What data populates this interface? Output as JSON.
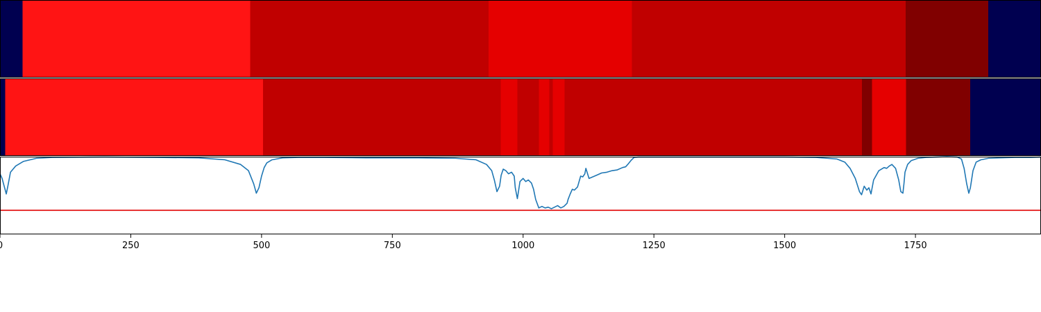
{
  "chart_data": [
    {
      "type": "heatmap",
      "xlim": [
        0,
        1990
      ],
      "segments": [
        {
          "x0": 0,
          "x1": 43,
          "color": "#000050"
        },
        {
          "x0": 43,
          "x1": 478,
          "color": "#ff1414"
        },
        {
          "x0": 478,
          "x1": 934,
          "color": "#c00000"
        },
        {
          "x0": 934,
          "x1": 1208,
          "color": "#e50000"
        },
        {
          "x0": 1208,
          "x1": 1731,
          "color": "#c00000"
        },
        {
          "x0": 1731,
          "x1": 1889,
          "color": "#800000"
        },
        {
          "x0": 1889,
          "x1": 1990,
          "color": "#000050"
        }
      ]
    },
    {
      "type": "heatmap",
      "xlim": [
        0,
        1990
      ],
      "segments": [
        {
          "x0": 0,
          "x1": 10,
          "color": "#000050"
        },
        {
          "x0": 10,
          "x1": 503,
          "color": "#ff1414"
        },
        {
          "x0": 503,
          "x1": 957,
          "color": "#c00000"
        },
        {
          "x0": 957,
          "x1": 989,
          "color": "#e50000"
        },
        {
          "x0": 989,
          "x1": 1030,
          "color": "#c00000"
        },
        {
          "x0": 1030,
          "x1": 1050,
          "color": "#e50000"
        },
        {
          "x0": 1050,
          "x1": 1057,
          "color": "#c00000"
        },
        {
          "x0": 1057,
          "x1": 1079,
          "color": "#e50000"
        },
        {
          "x0": 1079,
          "x1": 1648,
          "color": "#c00000"
        },
        {
          "x0": 1648,
          "x1": 1667,
          "color": "#800000"
        },
        {
          "x0": 1667,
          "x1": 1732,
          "color": "#e50000"
        },
        {
          "x0": 1732,
          "x1": 1855,
          "color": "#800000"
        },
        {
          "x0": 1855,
          "x1": 1990,
          "color": "#000050"
        }
      ]
    },
    {
      "type": "line",
      "xlim": [
        0,
        1990
      ],
      "ylim": [
        0,
        1
      ],
      "xticks": [
        0,
        250,
        500,
        750,
        1000,
        1250,
        1500,
        1750
      ],
      "xtick_labels": [
        "0",
        "250",
        "500",
        "750",
        "1000",
        "1250",
        "1500",
        "1750"
      ],
      "hline": {
        "y": 0.31,
        "color": "#e00000"
      },
      "series": [
        {
          "color": "#1f77b4",
          "x": [
            0,
            4,
            8,
            12,
            15,
            20,
            30,
            45,
            70,
            100,
            200,
            300,
            380,
            430,
            460,
            475,
            485,
            490,
            495,
            500,
            505,
            510,
            520,
            540,
            570,
            620,
            700,
            800,
            870,
            910,
            930,
            940,
            945,
            950,
            955,
            958,
            962,
            967,
            972,
            978,
            983,
            985,
            989,
            994,
            1000,
            1005,
            1010,
            1016,
            1020,
            1024,
            1030,
            1036,
            1042,
            1048,
            1054,
            1060,
            1066,
            1072,
            1078,
            1084,
            1086,
            1090,
            1094,
            1098,
            1104,
            1110,
            1114,
            1118,
            1120,
            1126,
            1140,
            1150,
            1160,
            1170,
            1180,
            1190,
            1196,
            1200,
            1206,
            1212,
            1220,
            1240,
            1300,
            1400,
            1500,
            1560,
            1600,
            1615,
            1625,
            1635,
            1643,
            1647,
            1652,
            1657,
            1661,
            1665,
            1670,
            1675,
            1680,
            1685,
            1690,
            1695,
            1700,
            1705,
            1712,
            1718,
            1722,
            1726,
            1728,
            1730,
            1735,
            1742,
            1755,
            1770,
            1790,
            1810,
            1830,
            1838,
            1843,
            1848,
            1852,
            1855,
            1860,
            1866,
            1875,
            1890,
            1910,
            1940,
            1970,
            1990
          ],
          "y": [
            0.78,
            0.72,
            0.62,
            0.52,
            0.62,
            0.8,
            0.88,
            0.94,
            0.98,
            0.99,
            0.995,
            0.99,
            0.985,
            0.96,
            0.9,
            0.82,
            0.65,
            0.53,
            0.6,
            0.75,
            0.86,
            0.92,
            0.96,
            0.985,
            0.99,
            0.99,
            0.985,
            0.985,
            0.98,
            0.96,
            0.9,
            0.82,
            0.7,
            0.55,
            0.62,
            0.76,
            0.84,
            0.82,
            0.78,
            0.8,
            0.75,
            0.6,
            0.46,
            0.68,
            0.72,
            0.68,
            0.7,
            0.66,
            0.58,
            0.45,
            0.34,
            0.36,
            0.34,
            0.35,
            0.33,
            0.35,
            0.37,
            0.34,
            0.36,
            0.4,
            0.45,
            0.52,
            0.58,
            0.57,
            0.61,
            0.75,
            0.74,
            0.78,
            0.85,
            0.72,
            0.76,
            0.79,
            0.8,
            0.82,
            0.83,
            0.86,
            0.87,
            0.9,
            0.95,
            0.99,
            0.995,
            0.995,
            0.995,
            0.995,
            0.995,
            0.99,
            0.97,
            0.93,
            0.85,
            0.72,
            0.55,
            0.51,
            0.62,
            0.57,
            0.6,
            0.52,
            0.7,
            0.76,
            0.82,
            0.84,
            0.86,
            0.85,
            0.88,
            0.9,
            0.85,
            0.7,
            0.55,
            0.53,
            0.65,
            0.8,
            0.9,
            0.95,
            0.98,
            0.99,
            0.995,
            1.0,
            0.995,
            0.97,
            0.85,
            0.65,
            0.53,
            0.6,
            0.82,
            0.93,
            0.96,
            0.98,
            0.985,
            0.99,
            0.99,
            0.995
          ]
        }
      ]
    }
  ]
}
